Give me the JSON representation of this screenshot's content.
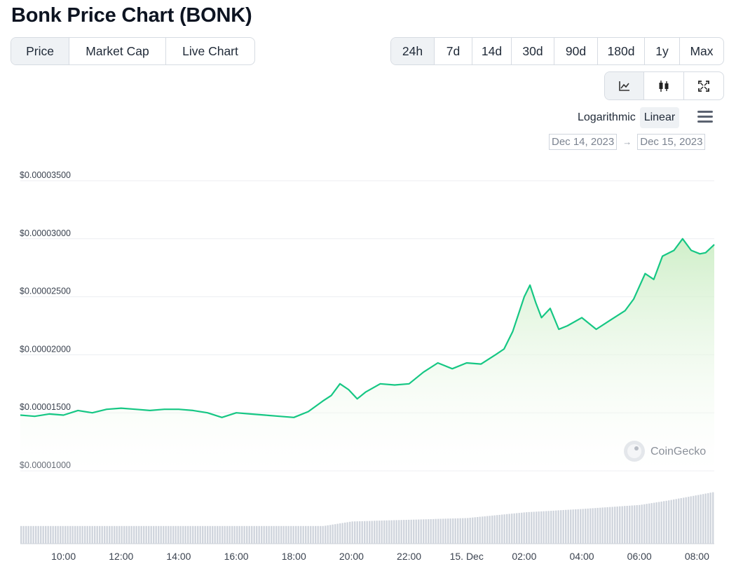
{
  "title": "Bonk Price Chart (BONK)",
  "type_tabs": [
    {
      "label": "Price",
      "active": true
    },
    {
      "label": "Market Cap",
      "active": false
    },
    {
      "label": "Live Chart",
      "active": false
    }
  ],
  "range_tabs": [
    {
      "label": "24h",
      "active": true
    },
    {
      "label": "7d",
      "active": false
    },
    {
      "label": "14d",
      "active": false
    },
    {
      "label": "30d",
      "active": false
    },
    {
      "label": "90d",
      "active": false
    },
    {
      "label": "180d",
      "active": false
    },
    {
      "label": "1y",
      "active": false
    },
    {
      "label": "Max",
      "active": false
    }
  ],
  "chart_modes": [
    {
      "icon": "line-chart-icon",
      "active": true
    },
    {
      "icon": "candlestick-icon",
      "active": false
    },
    {
      "icon": "fullscreen-icon",
      "active": false
    }
  ],
  "scale": {
    "logarithmic": "Logarithmic",
    "linear": "Linear",
    "selected": "Linear"
  },
  "date_range": {
    "from": "Dec 14, 2023",
    "arrow": "→",
    "to": "Dec 15, 2023"
  },
  "watermark": "CoinGecko",
  "colors": {
    "line": "#16c784",
    "fill_top": "#d6f2d0",
    "volume": "#d0d5dd"
  },
  "chart_data": {
    "type": "area",
    "title": "",
    "xlabel": "",
    "ylabel": "",
    "ylim": [
      1e-05,
      3.5e-05
    ],
    "xlim": [
      8.5,
      32.6
    ],
    "y_ticks": [
      3.5e-05,
      3e-05,
      2.5e-05,
      2e-05,
      1.5e-05,
      1e-05
    ],
    "y_tick_labels": [
      "$0.00003500",
      "$0.00003000",
      "$0.00002500",
      "$0.00002000",
      "$0.00001500",
      "$0.00001000"
    ],
    "x_ticks": [
      10,
      12,
      14,
      16,
      18,
      20,
      22,
      24,
      26,
      28,
      30,
      32
    ],
    "x_tick_labels": [
      "10:00",
      "12:00",
      "14:00",
      "16:00",
      "18:00",
      "20:00",
      "22:00",
      "15. Dec",
      "02:00",
      "04:00",
      "06:00",
      "08:00"
    ],
    "series": [
      {
        "x": [
          8.5,
          9.0,
          9.5,
          10.0,
          10.5,
          11.0,
          11.5,
          12.0,
          12.5,
          13.0,
          13.5,
          14.0,
          14.5,
          15.0,
          15.5,
          16.0,
          16.5,
          17.0,
          17.5,
          18.0,
          18.5,
          19.0,
          19.3,
          19.6,
          19.9,
          20.2,
          20.5,
          21.0,
          21.5,
          22.0,
          22.5,
          23.0,
          23.5,
          24.0,
          24.5,
          25.0,
          25.3,
          25.6,
          25.8,
          26.0,
          26.2,
          26.4,
          26.6,
          26.9,
          27.2,
          27.5,
          28.0,
          28.5,
          29.0,
          29.5,
          29.8,
          30.2,
          30.5,
          30.8,
          31.2,
          31.5,
          31.8,
          32.1,
          32.3,
          32.6
        ],
        "y": [
          1.48e-05,
          1.47e-05,
          1.49e-05,
          1.48e-05,
          1.52e-05,
          1.5e-05,
          1.53e-05,
          1.54e-05,
          1.53e-05,
          1.52e-05,
          1.53e-05,
          1.53e-05,
          1.52e-05,
          1.5e-05,
          1.46e-05,
          1.5e-05,
          1.49e-05,
          1.48e-05,
          1.47e-05,
          1.46e-05,
          1.51e-05,
          1.6e-05,
          1.65e-05,
          1.75e-05,
          1.7e-05,
          1.62e-05,
          1.68e-05,
          1.75e-05,
          1.74e-05,
          1.75e-05,
          1.85e-05,
          1.93e-05,
          1.88e-05,
          1.93e-05,
          1.92e-05,
          2e-05,
          2.05e-05,
          2.2e-05,
          2.35e-05,
          2.5e-05,
          2.6e-05,
          2.45e-05,
          2.32e-05,
          2.4e-05,
          2.22e-05,
          2.25e-05,
          2.32e-05,
          2.22e-05,
          2.3e-05,
          2.38e-05,
          2.48e-05,
          2.7e-05,
          2.65e-05,
          2.85e-05,
          2.9e-05,
          3e-05,
          2.9e-05,
          2.87e-05,
          2.88e-05,
          2.95e-05
        ]
      }
    ],
    "volume": {
      "x": [
        8.5,
        12.0,
        16.0,
        19.0,
        20.0,
        22.0,
        24.0,
        26.0,
        28.0,
        30.0,
        31.0,
        32.6
      ],
      "relative": [
        0.31,
        0.31,
        0.31,
        0.31,
        0.39,
        0.42,
        0.45,
        0.55,
        0.61,
        0.68,
        0.76,
        0.91
      ]
    }
  }
}
